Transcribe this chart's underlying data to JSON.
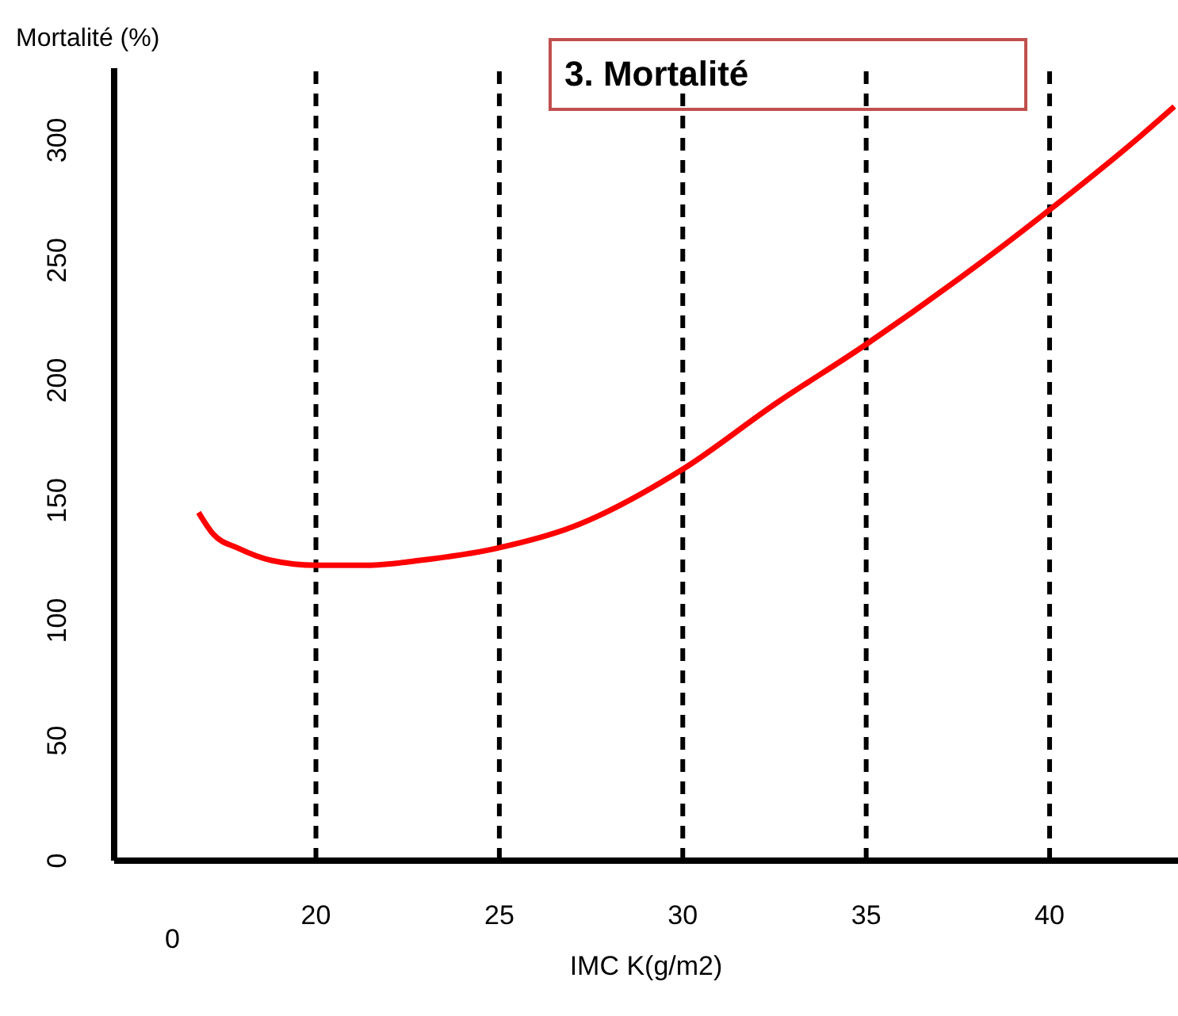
{
  "chart_data": {
    "type": "line",
    "title": "3. Mortalité",
    "xlabel": "IMC K(g/m2)",
    "ylabel": "Mortalité (%)",
    "xlim": [
      14.5,
      43.5
    ],
    "xticks": [
      20,
      25,
      30,
      35,
      40
    ],
    "annotations": [
      "0"
    ],
    "ylim": [
      0,
      330
    ],
    "yticks": [
      0,
      50,
      100,
      150,
      200,
      250,
      300
    ],
    "grid": false,
    "legend": false,
    "marker": "none",
    "line_style": "solid",
    "series": [
      {
        "color": "#ff0000",
        "x": [
          16.8,
          17.2,
          17.9,
          18.8,
          20,
          21.4,
          22.8,
          24.9,
          27.0,
          30,
          32.5,
          35,
          37.5,
          40,
          42.5,
          43.4
        ],
        "values": [
          145,
          136,
          130,
          125,
          123,
          123,
          125,
          130,
          139,
          163,
          190,
          215,
          242,
          271,
          302,
          314
        ]
      }
    ],
    "ref_lines": [
      {
        "axis": "x",
        "value": 20,
        "color": "#000000",
        "line_style": "dashed"
      },
      {
        "axis": "x",
        "value": 25,
        "color": "#000000",
        "line_style": "dashed"
      },
      {
        "axis": "x",
        "value": 30,
        "color": "#000000",
        "line_style": "dashed"
      },
      {
        "axis": "x",
        "value": 35,
        "color": "#000000",
        "line_style": "dashed"
      },
      {
        "axis": "x",
        "value": 40,
        "color": "#000000",
        "line_style": "dashed"
      }
    ]
  }
}
